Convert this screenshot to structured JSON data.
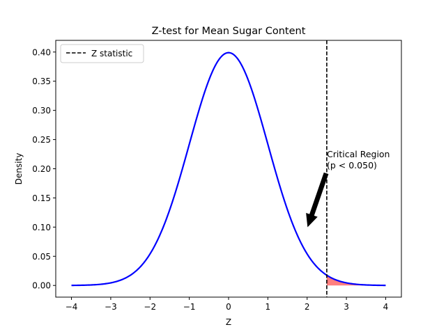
{
  "chart_data": {
    "type": "line",
    "title": "Z-test for Mean Sugar Content",
    "xlabel": "Z",
    "ylabel": "Density",
    "xlim": [
      -4.4,
      4.4
    ],
    "ylim": [
      -0.02,
      0.42
    ],
    "x_ticks": [
      -4,
      -3,
      -2,
      -1,
      0,
      1,
      2,
      3,
      4
    ],
    "x_tick_labels": [
      "−4",
      "−3",
      "−2",
      "−1",
      "0",
      "1",
      "2",
      "3",
      "4"
    ],
    "y_ticks": [
      0.0,
      0.05,
      0.1,
      0.15,
      0.2,
      0.25,
      0.3,
      0.35,
      0.4
    ],
    "y_tick_labels": [
      "0.00",
      "0.05",
      "0.10",
      "0.15",
      "0.20",
      "0.25",
      "0.30",
      "0.35",
      "0.40"
    ],
    "grid": false,
    "series": [
      {
        "kind": "curve",
        "color": "#0000ff",
        "x": [
          -4.0,
          -3.5,
          -3.0,
          -2.5,
          -2.0,
          -1.5,
          -1.0,
          -0.5,
          0.0,
          0.5,
          1.0,
          1.5,
          2.0,
          2.5,
          3.0,
          3.5,
          4.0
        ],
        "y": [
          0.0001,
          0.0009,
          0.0044,
          0.0175,
          0.054,
          0.1295,
          0.242,
          0.3521,
          0.3989,
          0.3521,
          0.242,
          0.1295,
          0.054,
          0.0175,
          0.0044,
          0.0009,
          0.0001
        ]
      },
      {
        "name": "Z statistic",
        "kind": "vline",
        "color": "#000000",
        "style": "dashed",
        "x": 2.5
      },
      {
        "kind": "shaded_area",
        "color": "#ff0000",
        "opacity": 0.5,
        "x_from": 2.5,
        "x_to": 4.0
      }
    ],
    "legend": {
      "position": "upper-left",
      "entries": [
        "Z statistic"
      ]
    },
    "annotation": {
      "text_line1": "Critical Region",
      "text_line2": "(p < 0.050)",
      "text_x": 2.5,
      "text_y": 0.2,
      "arrow_to_x": 2.0,
      "arrow_to_y": 0.1
    }
  }
}
